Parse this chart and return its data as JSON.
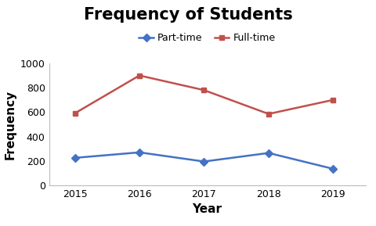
{
  "title": "Frequency of Students",
  "xlabel": "Year",
  "ylabel": "Frequency",
  "years": [
    2015,
    2016,
    2017,
    2018,
    2019
  ],
  "part_time": [
    225,
    270,
    195,
    265,
    135
  ],
  "full_time": [
    590,
    900,
    780,
    585,
    700
  ],
  "part_time_color": "#4472C4",
  "full_time_color": "#C0504D",
  "ylim": [
    0,
    1000
  ],
  "yticks": [
    0,
    200,
    400,
    600,
    800,
    1000
  ],
  "title_fontsize": 15,
  "axis_label_fontsize": 11,
  "legend_labels": [
    "Part-time",
    "Full-time"
  ],
  "background_color": "#ffffff",
  "tick_fontsize": 9
}
